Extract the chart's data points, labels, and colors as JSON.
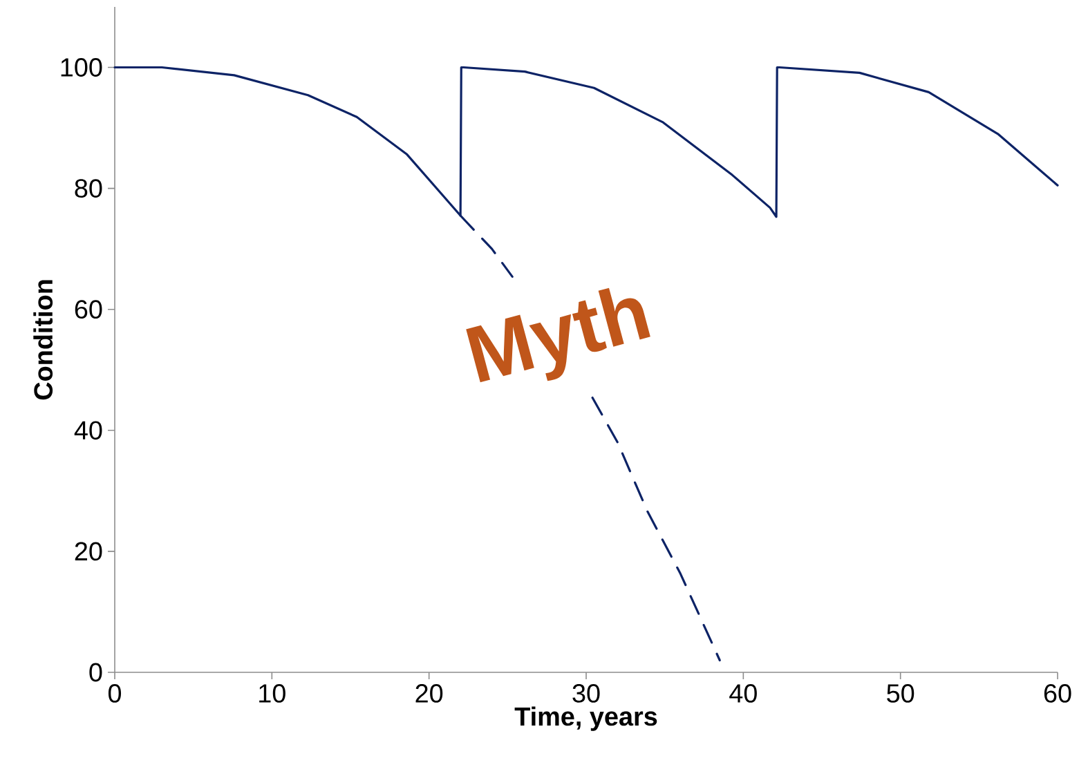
{
  "chart_data": {
    "type": "line",
    "xlabel": "Time, years",
    "ylabel": "Condition",
    "annotations": [
      "Myth"
    ],
    "xlim": [
      0,
      60
    ],
    "ylim": [
      0,
      110
    ],
    "xticks": [
      0,
      10,
      20,
      30,
      40,
      50,
      60
    ],
    "yticks": [
      0,
      20,
      40,
      60,
      80,
      100
    ],
    "series": [
      {
        "color": "#0d2366",
        "line_style": "solid",
        "x": [
          0,
          3,
          7.6,
          12.3,
          15.4,
          18.6,
          22,
          22.05,
          22.2,
          26.1,
          30.5,
          34.9,
          39.3,
          41.7,
          42.1,
          42.15,
          42.3,
          47.4,
          51.8,
          56.2,
          60
        ],
        "values": [
          100,
          100,
          98.7,
          95.4,
          91.8,
          85.6,
          75.5,
          100,
          100,
          99.3,
          96.6,
          90.9,
          82.2,
          76.8,
          75.3,
          100,
          100,
          99.1,
          95.9,
          89,
          80.5
        ]
      },
      {
        "color": "#0d2366",
        "line_style": "dashed",
        "x": [
          22,
          24,
          25.3,
          27.8,
          30.4,
          32,
          33.9,
          36,
          38.5
        ],
        "values": [
          75.5,
          70,
          65.4,
          null,
          45.4,
          38,
          26.6,
          16.3,
          2
        ]
      }
    ]
  }
}
